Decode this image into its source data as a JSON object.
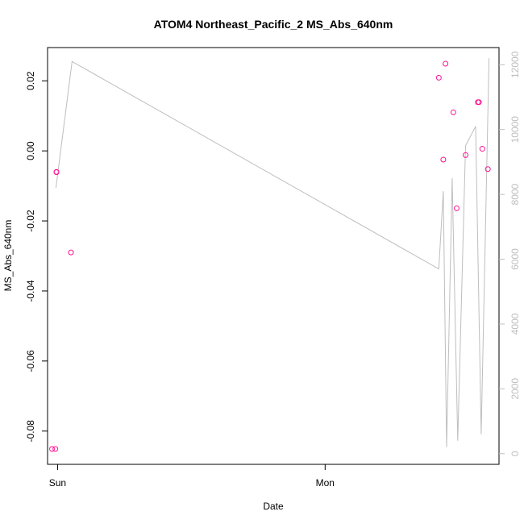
{
  "chart_data": {
    "type": "scatter",
    "title": "ATOM4 Northeast_Pacific_2 MS_Abs_640nm",
    "xlabel": "Date",
    "ylabel": "MS_Abs_640nm",
    "x_ticks": [
      {
        "label": "Sun",
        "value": 0
      },
      {
        "label": "Mon",
        "value": 24
      }
    ],
    "xlim": [
      -0.9,
      39.6
    ],
    "ylim": [
      -0.0895,
      0.0295
    ],
    "y2lim": [
      -330,
      12530
    ],
    "y_ticks": [
      -0.08,
      -0.06,
      -0.04,
      -0.02,
      0.0,
      0.02
    ],
    "y_tick_labels": [
      "-0.08",
      "-0.06",
      "-0.04",
      "-0.02",
      "0.00",
      "0.02"
    ],
    "y2_ticks": [
      0,
      2000,
      4000,
      6000,
      8000,
      10000,
      12000
    ],
    "y2_tick_labels": [
      "0",
      "2000",
      "4000",
      "6000",
      "8000",
      "10000",
      "12000"
    ],
    "grid": false,
    "colors": {
      "points": "#ff1493",
      "line": "#bebebe",
      "right_axis": "#bebebe",
      "axes": "#000000"
    },
    "series": [
      {
        "type": "scatter",
        "axis": "left",
        "points": [
          {
            "x": -0.2,
            "y": -0.0851
          },
          {
            "x": -0.1,
            "y": -0.006
          },
          {
            "x": -0.5,
            "y": -0.0851
          },
          {
            "x": -0.1,
            "y": -0.0061
          },
          {
            "x": 1.2,
            "y": -0.029
          },
          {
            "x": 34.2,
            "y": 0.0209
          },
          {
            "x": 34.6,
            "y": -0.0025
          },
          {
            "x": 34.8,
            "y": 0.0249
          },
          {
            "x": 35.5,
            "y": 0.011
          },
          {
            "x": 35.8,
            "y": -0.0164
          },
          {
            "x": 36.6,
            "y": -0.0012
          },
          {
            "x": 37.8,
            "y": 0.0139
          },
          {
            "x": 37.7,
            "y": 0.0139
          },
          {
            "x": 38.1,
            "y": 0.0006
          },
          {
            "x": 38.6,
            "y": -0.0052
          }
        ]
      },
      {
        "type": "line",
        "axis": "right",
        "points": [
          {
            "x": -0.15,
            "y": 8200
          },
          {
            "x": 1.3,
            "y": 12100
          },
          {
            "x": 34.2,
            "y": 5700
          },
          {
            "x": 34.6,
            "y": 8100
          },
          {
            "x": 34.9,
            "y": 200
          },
          {
            "x": 35.4,
            "y": 8500
          },
          {
            "x": 35.9,
            "y": 400
          },
          {
            "x": 36.6,
            "y": 9500
          },
          {
            "x": 37.5,
            "y": 10100
          },
          {
            "x": 38.0,
            "y": 600
          },
          {
            "x": 38.7,
            "y": 12200
          }
        ]
      }
    ]
  }
}
